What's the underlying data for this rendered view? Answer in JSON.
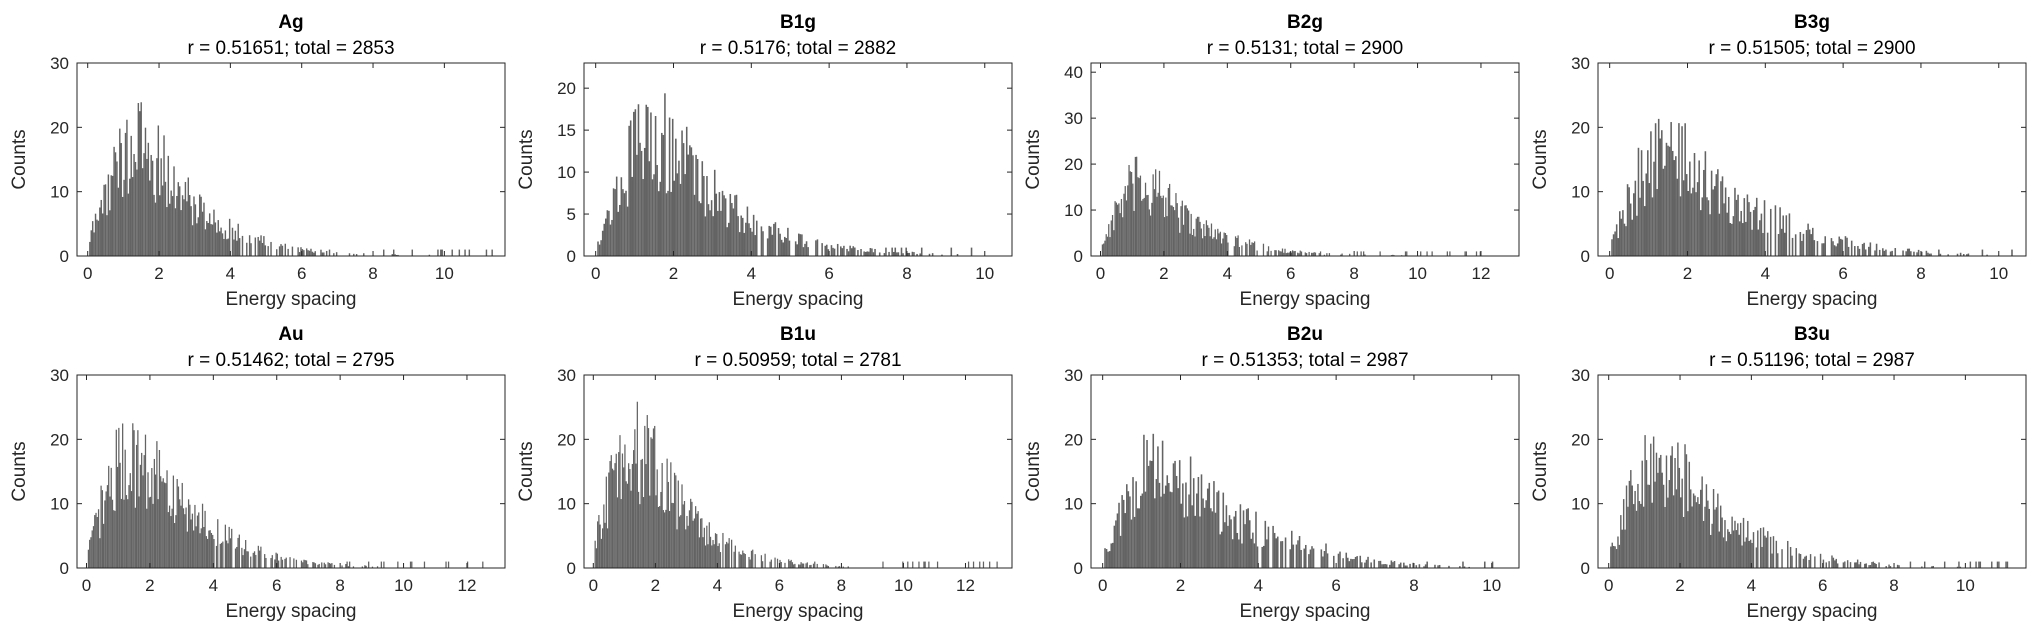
{
  "style": {
    "bar_color": "#636363",
    "axis_color": "#262626",
    "background": "#ffffff"
  },
  "chart_data": [
    {
      "type": "bar",
      "title": "Ag",
      "subtitle": "r = 0.51651; total = 2853",
      "xlabel": "Energy spacing",
      "ylabel": "Counts",
      "xlim": [
        -0.3,
        11.7
      ],
      "ylim": [
        0,
        30
      ],
      "xticks": [
        0,
        2,
        4,
        6,
        8,
        10
      ],
      "yticks": [
        0,
        10,
        20,
        30
      ],
      "grid": false,
      "legend": "none",
      "histogram_bins": {
        "x": [
          0.0,
          0.5,
          1.0,
          1.5,
          2.0,
          2.5,
          3.0,
          3.5,
          4.0,
          4.5,
          5.0,
          5.5,
          6.0,
          6.5,
          7.0,
          7.5,
          8.0,
          8.5,
          9.0,
          9.5,
          10.0,
          10.5,
          11.0,
          11.5
        ],
        "values": [
          2,
          10,
          16,
          17,
          14,
          10,
          8,
          5.5,
          4,
          3,
          2,
          1.4,
          1,
          0.7,
          0.5,
          0.4,
          0.3,
          0.25,
          0.2,
          0.15,
          0.1,
          0.05,
          0.03,
          0
        ]
      }
    },
    {
      "type": "bar",
      "title": "B1g",
      "subtitle": "r = 0.5176; total = 2882",
      "xlabel": "Energy spacing",
      "ylabel": "Counts",
      "xlim": [
        -0.3,
        10.7
      ],
      "ylim": [
        0,
        23
      ],
      "xticks": [
        0,
        2,
        4,
        6,
        8,
        10
      ],
      "yticks": [
        0,
        5,
        10,
        15,
        20
      ],
      "grid": false,
      "legend": "none",
      "histogram_bins": {
        "x": [
          0.0,
          0.5,
          1.0,
          1.5,
          2.0,
          2.5,
          3.0,
          3.5,
          4.0,
          4.5,
          5.0,
          5.5,
          6.0,
          6.5,
          7.0,
          7.5,
          8.0,
          8.5,
          9.0,
          9.5,
          10.0,
          10.5
        ],
        "values": [
          1.5,
          7,
          13,
          14,
          13,
          10,
          7.5,
          5.5,
          4,
          3,
          2.2,
          1.6,
          1.2,
          0.9,
          0.7,
          0.5,
          0.4,
          0.3,
          0.2,
          0.15,
          0.1,
          0
        ]
      }
    },
    {
      "type": "bar",
      "title": "B2g",
      "subtitle": "r = 0.5131; total = 2900",
      "xlabel": "Energy spacing",
      "ylabel": "Counts",
      "xlim": [
        -0.3,
        13.2
      ],
      "ylim": [
        0,
        42
      ],
      "xticks": [
        0,
        2,
        4,
        6,
        8,
        10,
        12
      ],
      "yticks": [
        0,
        10,
        20,
        30,
        40
      ],
      "grid": false,
      "legend": "none",
      "histogram_bins": {
        "x": [
          0.0,
          0.5,
          1.0,
          1.5,
          2.0,
          2.5,
          3.0,
          3.5,
          4.0,
          4.5,
          5.0,
          5.5,
          6.0,
          6.5,
          7.0,
          7.5,
          8.0,
          8.5,
          9.0,
          9.5,
          10.0,
          10.5,
          11.0,
          11.5,
          12.0,
          12.5,
          13.0
        ],
        "values": [
          2,
          10,
          15,
          15,
          12,
          9,
          7,
          5,
          4,
          3,
          2,
          1.5,
          1,
          0.7,
          0.5,
          0.4,
          0.3,
          0.25,
          0.2,
          0.15,
          0.1,
          0.08,
          0.05,
          0.03,
          0.02,
          0.01,
          0
        ]
      }
    },
    {
      "type": "bar",
      "title": "B3g",
      "subtitle": "r = 0.51505; total = 2900",
      "xlabel": "Energy spacing",
      "ylabel": "Counts",
      "xlim": [
        -0.3,
        10.7
      ],
      "ylim": [
        0,
        30
      ],
      "xticks": [
        0,
        2,
        4,
        6,
        8,
        10
      ],
      "yticks": [
        0,
        10,
        20,
        30
      ],
      "grid": false,
      "legend": "none",
      "histogram_bins": {
        "x": [
          0.0,
          0.5,
          1.0,
          1.5,
          2.0,
          2.5,
          3.0,
          3.5,
          4.0,
          4.5,
          5.0,
          5.5,
          6.0,
          6.5,
          7.0,
          7.5,
          8.0,
          8.5,
          9.0,
          9.5,
          10.0,
          10.5
        ],
        "values": [
          2,
          9,
          15,
          16,
          14,
          11,
          8.5,
          7,
          6,
          5,
          4,
          3,
          2.2,
          1.6,
          1.2,
          0.9,
          0.7,
          0.5,
          0.35,
          0.2,
          0.1,
          0
        ]
      }
    },
    {
      "type": "bar",
      "title": "Au",
      "subtitle": "r = 0.51462; total = 2795",
      "xlabel": "Energy spacing",
      "ylabel": "Counts",
      "xlim": [
        -0.3,
        13.2
      ],
      "ylim": [
        0,
        30
      ],
      "xticks": [
        0,
        2,
        4,
        6,
        8,
        10,
        12
      ],
      "yticks": [
        0,
        10,
        20,
        30
      ],
      "grid": false,
      "legend": "none",
      "histogram_bins": {
        "x": [
          0.0,
          0.5,
          1.0,
          1.5,
          2.0,
          2.5,
          3.0,
          3.5,
          4.0,
          4.5,
          5.0,
          5.5,
          6.0,
          6.5,
          7.0,
          7.5,
          8.0,
          8.5,
          9.0,
          9.5,
          10.0,
          10.5,
          11.0,
          11.5,
          12.0,
          12.5,
          13.0
        ],
        "values": [
          2,
          10,
          16,
          17,
          15,
          12,
          10,
          8,
          6,
          4.5,
          3.3,
          2.4,
          1.7,
          1.2,
          0.9,
          0.65,
          0.5,
          0.35,
          0.25,
          0.2,
          0.15,
          0.1,
          0.07,
          0.05,
          0.03,
          0.02,
          0
        ]
      }
    },
    {
      "type": "bar",
      "title": "B1u",
      "subtitle": "r = 0.50959; total = 2781",
      "xlabel": "Energy spacing",
      "ylabel": "Counts",
      "xlim": [
        -0.3,
        13.5
      ],
      "ylim": [
        0,
        30
      ],
      "xticks": [
        0,
        2,
        4,
        6,
        8,
        10,
        12
      ],
      "yticks": [
        0,
        10,
        20,
        30
      ],
      "grid": false,
      "legend": "none",
      "histogram_bins": {
        "x": [
          0.0,
          0.5,
          1.0,
          1.5,
          2.0,
          2.5,
          3.0,
          3.5,
          4.0,
          4.5,
          5.0,
          5.5,
          6.0,
          6.5,
          7.0,
          7.5,
          8.0,
          8.5,
          9.0,
          9.5,
          10.0,
          10.5,
          11.0,
          11.5,
          12.0,
          12.5,
          13.0
        ],
        "values": [
          3,
          12,
          18,
          18,
          15,
          12,
          8.5,
          6,
          4.5,
          3.2,
          2.3,
          1.6,
          1.1,
          0.8,
          0.55,
          0.4,
          0.3,
          0.2,
          0.15,
          0.1,
          0.08,
          0.05,
          0.04,
          0.03,
          0.02,
          0.01,
          0
        ]
      }
    },
    {
      "type": "bar",
      "title": "B2u",
      "subtitle": "r = 0.51353; total = 2987",
      "xlabel": "Energy spacing",
      "ylabel": "Counts",
      "xlim": [
        -0.3,
        10.7
      ],
      "ylim": [
        0,
        30
      ],
      "xticks": [
        0,
        2,
        4,
        6,
        8,
        10
      ],
      "yticks": [
        0,
        10,
        20,
        30
      ],
      "grid": false,
      "legend": "none",
      "histogram_bins": {
        "x": [
          0.0,
          0.5,
          1.0,
          1.5,
          2.0,
          2.5,
          3.0,
          3.5,
          4.0,
          4.5,
          5.0,
          5.5,
          6.0,
          6.5,
          7.0,
          7.5,
          8.0,
          8.5,
          9.0,
          9.5,
          10.0,
          10.5
        ],
        "values": [
          2,
          9,
          15,
          15,
          13,
          11,
          9,
          7,
          6,
          5,
          4,
          3,
          2.2,
          1.6,
          1.1,
          0.8,
          0.55,
          0.4,
          0.25,
          0.15,
          0.1,
          0
        ]
      }
    },
    {
      "type": "bar",
      "title": "B3u",
      "subtitle": "r = 0.51196; total = 2987",
      "xlabel": "Energy spacing",
      "ylabel": "Counts",
      "xlim": [
        -0.3,
        11.7
      ],
      "ylim": [
        0,
        30
      ],
      "xticks": [
        0,
        2,
        4,
        6,
        8,
        10
      ],
      "yticks": [
        0,
        10,
        20,
        30
      ],
      "grid": false,
      "legend": "none",
      "histogram_bins": {
        "x": [
          0.0,
          0.5,
          1.0,
          1.5,
          2.0,
          2.5,
          3.0,
          3.5,
          4.0,
          4.5,
          5.0,
          5.5,
          6.0,
          6.5,
          7.0,
          7.5,
          8.0,
          8.5,
          9.0,
          9.5,
          10.0,
          10.5,
          11.0,
          11.5
        ],
        "values": [
          2,
          10,
          15,
          16,
          14,
          11,
          8.5,
          6.5,
          5,
          4,
          3,
          2.2,
          1.6,
          1.2,
          0.9,
          0.65,
          0.45,
          0.35,
          0.25,
          0.2,
          0.15,
          0.1,
          0.05,
          0
        ]
      }
    }
  ]
}
